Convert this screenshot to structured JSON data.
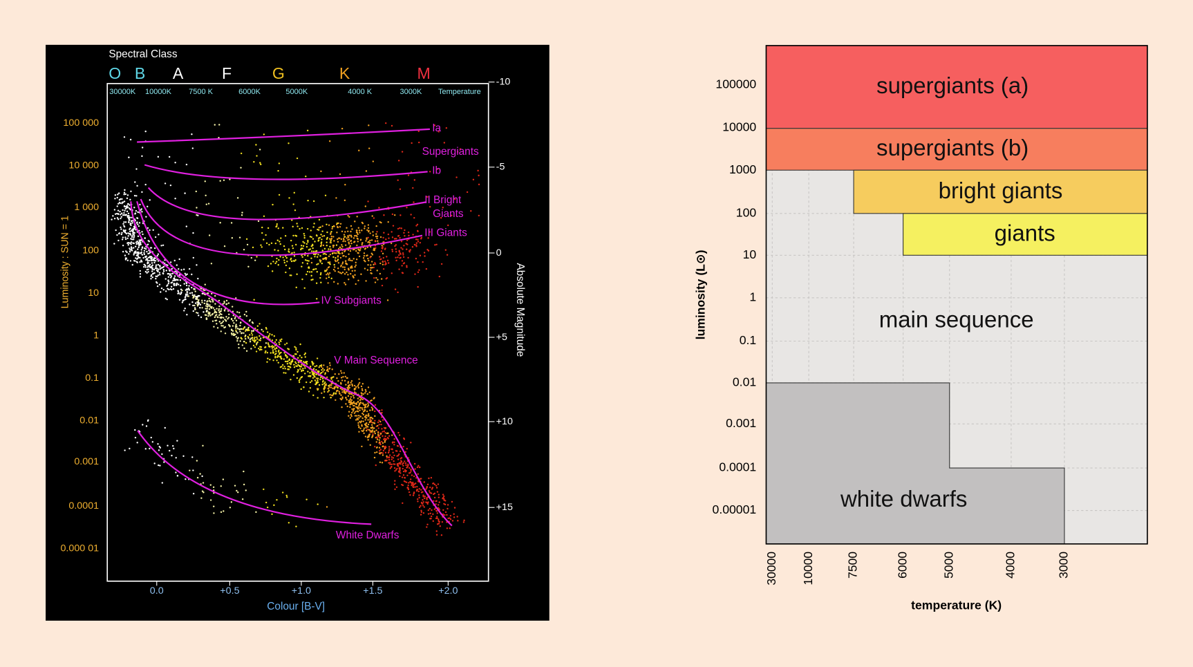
{
  "left_diagram": {
    "spectral_class_title": "Spectral Class",
    "spectral_classes": [
      "O",
      "B",
      "A",
      "F",
      "G",
      "K",
      "M"
    ],
    "temperatures": [
      "30000K",
      "10000K",
      "7500 K",
      "6000K",
      "5000K",
      "4000 K",
      "3000K"
    ],
    "temperature_title": "Temperature",
    "luminosity_labels": [
      "100 000",
      "10 000",
      "1 000",
      "100",
      "10",
      "1",
      "0.1",
      "0.01",
      "0.001",
      "0.0001",
      "0.000 01"
    ],
    "magnitude_labels": [
      "-10",
      "-5",
      "0",
      "+5",
      "+10",
      "+15"
    ],
    "colour_labels": [
      "0.0",
      "+0.5",
      "+1.0",
      "+1.5",
      "+2.0"
    ],
    "x_axis_title": "Colour [B-V]",
    "y_axis_title": "Luminosity : SUN = 1",
    "y2_axis_title": "Absolute Magnitude",
    "branch_labels": [
      "Ia",
      "Supergiants",
      "Ib",
      "II Bright",
      "Giants",
      "III Giants",
      "IV Subgiants",
      "V Main Sequence",
      "White Dwarfs"
    ]
  },
  "right_chart": {
    "y_tick_labels": [
      "100000",
      "10000",
      "1000",
      "100",
      "10",
      "1",
      "0.1",
      "0.01",
      "0.001",
      "0.0001",
      "0.00001"
    ],
    "x_tick_labels": [
      "30000",
      "10000",
      "7500",
      "6000",
      "5000",
      "4000",
      "3000"
    ],
    "y_axis_title": "luminosity (L⊙)",
    "x_axis_title": "temperature (K)",
    "regions": [
      "supergiants (a)",
      "supergiants (b)",
      "bright giants",
      "giants",
      "main sequence",
      "white dwarfs"
    ]
  }
}
